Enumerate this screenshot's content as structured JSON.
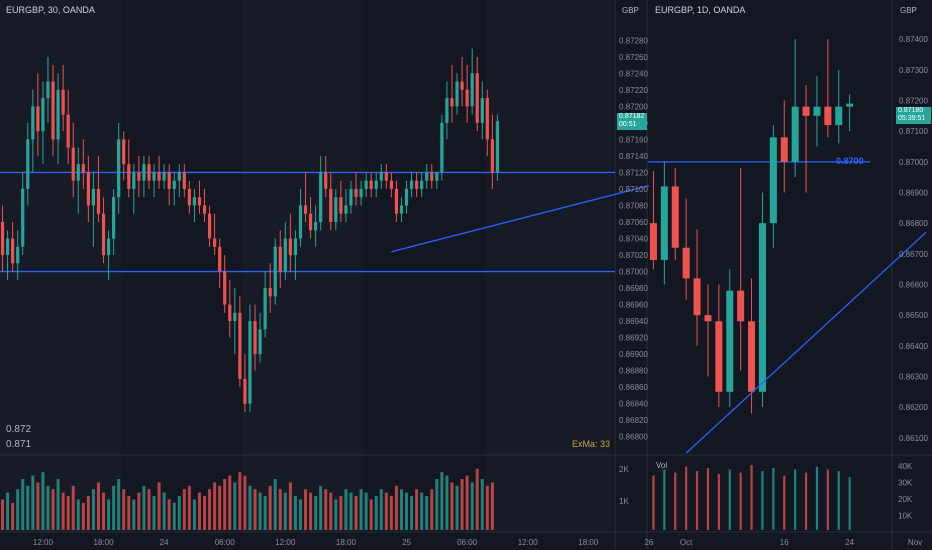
{
  "colors": {
    "up": "#26a69a",
    "down": "#ef5350",
    "line": "#2962ff",
    "bg": "#131722",
    "panelAlt": "#171b26",
    "text": "#8a8e99",
    "priceBadge": "#26a69a"
  },
  "left": {
    "title": "EURGBP, 30, OANDA",
    "legend_values": [
      "0.872",
      "0.871"
    ],
    "indicator_label": "ExMa: 33",
    "xlabels": [
      {
        "t": "12:00",
        "i": 8
      },
      {
        "t": "18:00",
        "i": 20
      },
      {
        "t": "24",
        "i": 32
      },
      {
        "t": "06:00",
        "i": 44
      },
      {
        "t": "12:00",
        "i": 56
      },
      {
        "t": "18:00",
        "i": 68
      },
      {
        "t": "25",
        "i": 80
      },
      {
        "t": "06:00",
        "i": 92
      },
      {
        "t": "12:00",
        "i": 104
      },
      {
        "t": "18:00",
        "i": 116
      },
      {
        "t": "26",
        "i": 128
      }
    ]
  },
  "right": {
    "title": "EURGBP, 1D, OANDA",
    "currency_label": "GBP",
    "price_badge": {
      "price": "0.87180",
      "time": "05:39:51"
    },
    "level_label": "0.8700",
    "vol_label": "Vol",
    "vol_ticks": [
      "40K",
      "30K",
      "20K",
      "10K"
    ],
    "xlabels": [
      {
        "t": "Oct",
        "i": 3
      },
      {
        "t": "16",
        "i": 12
      },
      {
        "t": "24",
        "i": 18
      },
      {
        "t": "Nov",
        "i": 24
      }
    ]
  },
  "middle_axis": {
    "currency_label": "GBP",
    "ticks": [
      "0.87280",
      "0.87260",
      "0.87240",
      "0.87220",
      "0.87200",
      "0.87180",
      "0.87160",
      "0.87140",
      "0.87120",
      "0.87100",
      "0.87080",
      "0.87060",
      "0.87040",
      "0.87020",
      "0.87000",
      "0.86980",
      "0.86960",
      "0.86940",
      "0.86920",
      "0.86900",
      "0.86880",
      "0.86860",
      "0.86840",
      "0.86820",
      "0.86800"
    ],
    "price_badge": {
      "price": "0.87182",
      "time": "00:51"
    },
    "vol_ticks": [
      "2K",
      "1K"
    ]
  },
  "chart_data": [
    {
      "type": "candlestick",
      "title": "EURGBP, 30, OANDA",
      "ylim": [
        0.8679,
        0.8729
      ],
      "levels": [
        0.8712,
        0.87
      ],
      "trendline": [
        {
          "i": 77,
          "p": 0.87024
        },
        {
          "i": 128,
          "p": 0.87104
        }
      ],
      "ohlc": [
        [
          0.8706,
          0.8708,
          0.87,
          0.8702
        ],
        [
          0.8702,
          0.8705,
          0.8699,
          0.8704
        ],
        [
          0.8704,
          0.8706,
          0.87,
          0.8701
        ],
        [
          0.8701,
          0.8705,
          0.8699,
          0.8703
        ],
        [
          0.8703,
          0.8712,
          0.8702,
          0.871
        ],
        [
          0.871,
          0.8718,
          0.8708,
          0.8716
        ],
        [
          0.8716,
          0.8722,
          0.8712,
          0.872
        ],
        [
          0.872,
          0.8724,
          0.8714,
          0.8717
        ],
        [
          0.8717,
          0.8723,
          0.8713,
          0.8721
        ],
        [
          0.8721,
          0.8726,
          0.8718,
          0.8723
        ],
        [
          0.8723,
          0.8725,
          0.8714,
          0.8716
        ],
        [
          0.8716,
          0.8724,
          0.8713,
          0.8722
        ],
        [
          0.8722,
          0.8725,
          0.8717,
          0.8719
        ],
        [
          0.8719,
          0.8722,
          0.8713,
          0.8715
        ],
        [
          0.8715,
          0.8718,
          0.8709,
          0.8711
        ],
        [
          0.8711,
          0.8715,
          0.8707,
          0.8713
        ],
        [
          0.8713,
          0.8716,
          0.871,
          0.8712
        ],
        [
          0.8712,
          0.8714,
          0.8706,
          0.8708
        ],
        [
          0.8708,
          0.8712,
          0.8703,
          0.871
        ],
        [
          0.871,
          0.8714,
          0.8706,
          0.8707
        ],
        [
          0.8707,
          0.8709,
          0.8701,
          0.8702
        ],
        [
          0.8702,
          0.8705,
          0.8699,
          0.8704
        ],
        [
          0.8704,
          0.871,
          0.8702,
          0.8709
        ],
        [
          0.8709,
          0.8718,
          0.8707,
          0.8716
        ],
        [
          0.8716,
          0.8717,
          0.8711,
          0.8713
        ],
        [
          0.8713,
          0.8716,
          0.8709,
          0.871
        ],
        [
          0.871,
          0.8713,
          0.8707,
          0.8712
        ],
        [
          0.8712,
          0.8714,
          0.8709,
          0.8711
        ],
        [
          0.8711,
          0.8714,
          0.8709,
          0.8713
        ],
        [
          0.8713,
          0.8714,
          0.871,
          0.8711
        ],
        [
          0.8711,
          0.8713,
          0.8709,
          0.8712
        ],
        [
          0.8712,
          0.8714,
          0.871,
          0.8711
        ],
        [
          0.8711,
          0.8713,
          0.871,
          0.8712
        ],
        [
          0.8712,
          0.8713,
          0.8708,
          0.871
        ],
        [
          0.871,
          0.8712,
          0.8708,
          0.8711
        ],
        [
          0.8711,
          0.8713,
          0.8709,
          0.8712
        ],
        [
          0.8712,
          0.8713,
          0.8709,
          0.871
        ],
        [
          0.871,
          0.8711,
          0.8707,
          0.8708
        ],
        [
          0.8708,
          0.871,
          0.8706,
          0.8709
        ],
        [
          0.8709,
          0.8711,
          0.8707,
          0.8708
        ],
        [
          0.8708,
          0.871,
          0.8706,
          0.8707
        ],
        [
          0.8707,
          0.8708,
          0.8703,
          0.8704
        ],
        [
          0.8704,
          0.8707,
          0.8702,
          0.8703
        ],
        [
          0.8703,
          0.8704,
          0.8698,
          0.87
        ],
        [
          0.87,
          0.8702,
          0.8695,
          0.8696
        ],
        [
          0.8696,
          0.8699,
          0.8692,
          0.8694
        ],
        [
          0.8694,
          0.8698,
          0.869,
          0.8695
        ],
        [
          0.8695,
          0.8697,
          0.8686,
          0.8687
        ],
        [
          0.8687,
          0.869,
          0.8683,
          0.8684
        ],
        [
          0.8684,
          0.8696,
          0.8683,
          0.8694
        ],
        [
          0.8694,
          0.8696,
          0.8688,
          0.869
        ],
        [
          0.869,
          0.8695,
          0.8689,
          0.8693
        ],
        [
          0.8693,
          0.87,
          0.8692,
          0.8698
        ],
        [
          0.8698,
          0.8701,
          0.8695,
          0.8697
        ],
        [
          0.8697,
          0.8704,
          0.8696,
          0.8703
        ],
        [
          0.8703,
          0.8705,
          0.8698,
          0.87
        ],
        [
          0.87,
          0.8706,
          0.8699,
          0.8704
        ],
        [
          0.8704,
          0.8707,
          0.87,
          0.8702
        ],
        [
          0.8702,
          0.8705,
          0.8699,
          0.8704
        ],
        [
          0.8704,
          0.871,
          0.8703,
          0.8708
        ],
        [
          0.8708,
          0.8712,
          0.8706,
          0.8707
        ],
        [
          0.8707,
          0.8709,
          0.8704,
          0.8705
        ],
        [
          0.8705,
          0.8708,
          0.8703,
          0.8706
        ],
        [
          0.8706,
          0.8714,
          0.8705,
          0.8712
        ],
        [
          0.8712,
          0.8714,
          0.8709,
          0.871
        ],
        [
          0.871,
          0.8712,
          0.8705,
          0.8706
        ],
        [
          0.8706,
          0.871,
          0.8705,
          0.8709
        ],
        [
          0.8709,
          0.8711,
          0.8706,
          0.8707
        ],
        [
          0.8707,
          0.871,
          0.8706,
          0.8708
        ],
        [
          0.8708,
          0.8711,
          0.8707,
          0.871
        ],
        [
          0.871,
          0.8712,
          0.8708,
          0.8709
        ],
        [
          0.8709,
          0.8711,
          0.8708,
          0.871
        ],
        [
          0.871,
          0.8712,
          0.8709,
          0.8711
        ],
        [
          0.8711,
          0.8712,
          0.8709,
          0.871
        ],
        [
          0.871,
          0.8712,
          0.8709,
          0.8711
        ],
        [
          0.8711,
          0.8713,
          0.871,
          0.8712
        ],
        [
          0.8712,
          0.8713,
          0.871,
          0.8711
        ],
        [
          0.8711,
          0.8712,
          0.8709,
          0.871
        ],
        [
          0.871,
          0.8711,
          0.8706,
          0.8707
        ],
        [
          0.8707,
          0.8709,
          0.8706,
          0.8708
        ],
        [
          0.8708,
          0.8711,
          0.8707,
          0.871
        ],
        [
          0.871,
          0.8712,
          0.8709,
          0.8711
        ],
        [
          0.8711,
          0.8712,
          0.8709,
          0.871
        ],
        [
          0.871,
          0.8712,
          0.8709,
          0.8711
        ],
        [
          0.8711,
          0.8713,
          0.871,
          0.8712
        ],
        [
          0.8712,
          0.8713,
          0.871,
          0.8711
        ],
        [
          0.8711,
          0.8712,
          0.871,
          0.8712
        ],
        [
          0.8712,
          0.8719,
          0.8711,
          0.8718
        ],
        [
          0.8718,
          0.8723,
          0.8716,
          0.8721
        ],
        [
          0.8721,
          0.8725,
          0.8718,
          0.872
        ],
        [
          0.872,
          0.8724,
          0.8719,
          0.8723
        ],
        [
          0.8723,
          0.8726,
          0.872,
          0.8722
        ],
        [
          0.8722,
          0.8725,
          0.8718,
          0.872
        ],
        [
          0.872,
          0.8727,
          0.8719,
          0.8724
        ],
        [
          0.8724,
          0.8726,
          0.8717,
          0.8718
        ],
        [
          0.8718,
          0.8723,
          0.8716,
          0.8721
        ],
        [
          0.8721,
          0.8722,
          0.8714,
          0.8716
        ],
        [
          0.8716,
          0.8719,
          0.871,
          0.8712
        ],
        [
          0.8712,
          0.8719,
          0.8711,
          0.87182
        ]
      ],
      "volume": [
        900,
        1100,
        800,
        1200,
        1500,
        1300,
        1600,
        1400,
        1700,
        1300,
        1200,
        1500,
        1100,
        1000,
        1300,
        900,
        800,
        1000,
        1200,
        1400,
        1100,
        900,
        1300,
        1500,
        1200,
        1000,
        900,
        1100,
        1300,
        1200,
        1000,
        1400,
        1100,
        900,
        800,
        1000,
        1200,
        1300,
        900,
        1100,
        1000,
        1200,
        1400,
        1300,
        1500,
        1600,
        1400,
        1700,
        1600,
        1300,
        1200,
        1100,
        1000,
        1300,
        1500,
        1200,
        1100,
        1400,
        1000,
        900,
        1200,
        1100,
        1000,
        1300,
        1200,
        1100,
        900,
        1000,
        1200,
        1100,
        1000,
        1200,
        1100,
        900,
        1000,
        1200,
        1100,
        1000,
        1300,
        1200,
        1100,
        1000,
        1200,
        1100,
        1000,
        1200,
        1500,
        1700,
        1600,
        1400,
        1300,
        1500,
        1600,
        1400,
        1800,
        1500,
        1300,
        1400
      ]
    },
    {
      "type": "candlestick",
      "title": "EURGBP, 1D, OANDA",
      "ylim": [
        0.8607,
        0.8743
      ],
      "levels": [
        0.87
      ],
      "trendline": [
        {
          "i": 3,
          "p": 0.8605
        },
        {
          "i": 25,
          "p": 0.8677
        }
      ],
      "ohlc": [
        [
          0.868,
          0.8697,
          0.8665,
          0.8668
        ],
        [
          0.8668,
          0.87,
          0.866,
          0.8692
        ],
        [
          0.8692,
          0.8698,
          0.8668,
          0.8672
        ],
        [
          0.8672,
          0.8688,
          0.8655,
          0.8662
        ],
        [
          0.8662,
          0.8678,
          0.864,
          0.865
        ],
        [
          0.865,
          0.866,
          0.863,
          0.8648
        ],
        [
          0.8648,
          0.866,
          0.862,
          0.8625
        ],
        [
          0.8625,
          0.8665,
          0.862,
          0.8658
        ],
        [
          0.8658,
          0.8698,
          0.8632,
          0.8648
        ],
        [
          0.8648,
          0.8662,
          0.8618,
          0.8625
        ],
        [
          0.8625,
          0.869,
          0.862,
          0.868
        ],
        [
          0.868,
          0.8712,
          0.8672,
          0.8708
        ],
        [
          0.8708,
          0.872,
          0.869,
          0.87
        ],
        [
          0.87,
          0.874,
          0.8695,
          0.8718
        ],
        [
          0.8718,
          0.8725,
          0.869,
          0.8715
        ],
        [
          0.8715,
          0.8728,
          0.8705,
          0.8718
        ],
        [
          0.8718,
          0.874,
          0.8708,
          0.8712
        ],
        [
          0.8712,
          0.873,
          0.8706,
          0.8718
        ],
        [
          0.8718,
          0.8722,
          0.871,
          0.8719
        ]
      ],
      "volume": [
        36000,
        40000,
        38000,
        42000,
        39000,
        41000,
        37000,
        40000,
        38000,
        43000,
        39000,
        41000,
        36000,
        40000,
        38000,
        42000,
        40000,
        39000,
        35000
      ]
    }
  ]
}
